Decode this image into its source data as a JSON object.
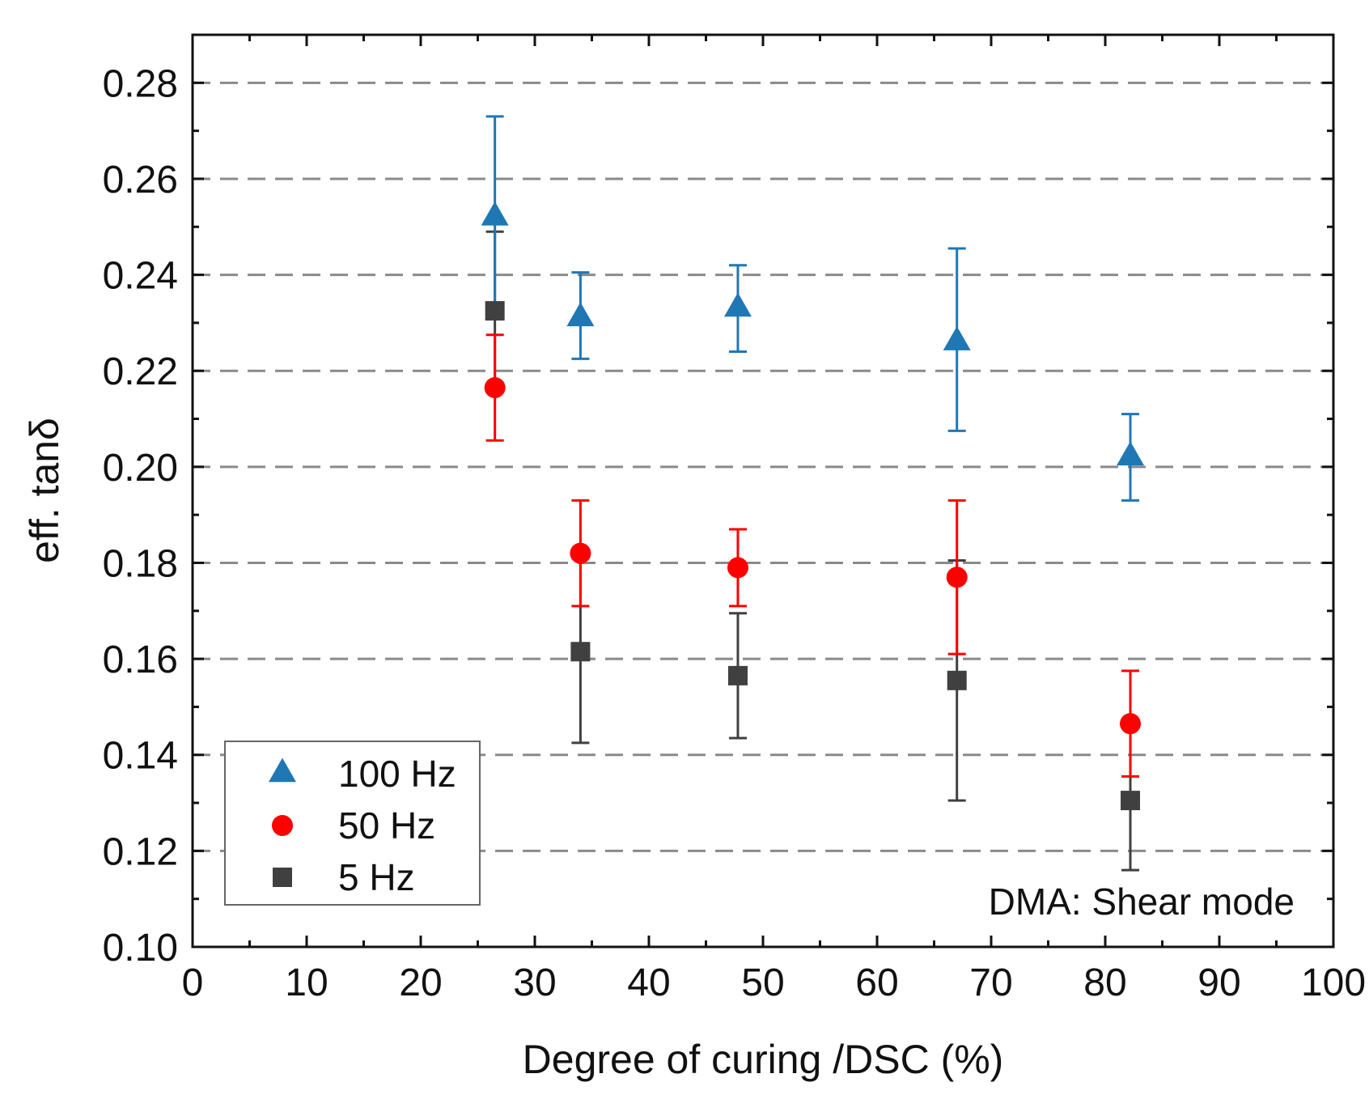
{
  "chart_data": {
    "type": "scatter",
    "xlabel": "Degree of curing /DSC (%)",
    "ylabel_prefix": "eff. tan",
    "ylabel_symbol": "δ",
    "xlim": [
      0,
      100
    ],
    "ylim": [
      0.1,
      0.29
    ],
    "x_ticks": [
      0,
      10,
      20,
      30,
      40,
      50,
      60,
      70,
      80,
      90,
      100
    ],
    "x_tick_labels": [
      "0",
      "10",
      "20",
      "30",
      "40",
      "50",
      "60",
      "70",
      "80",
      "90",
      "100"
    ],
    "y_ticks": [
      0.1,
      0.12,
      0.14,
      0.16,
      0.18,
      0.2,
      0.22,
      0.24,
      0.26,
      0.28
    ],
    "y_tick_labels": [
      "0.10",
      "0.12",
      "0.14",
      "0.16",
      "0.18",
      "0.20",
      "0.22",
      "0.24",
      "0.26",
      "0.28"
    ],
    "grid": "horizontal dashed",
    "annotation": "DMA: Shear mode",
    "legend_position": "bottom-left",
    "series": [
      {
        "name": "100 Hz",
        "marker": "triangle",
        "color": "#1f77b4",
        "points": [
          {
            "x": 26.5,
            "y": 0.252,
            "lo": 0.232,
            "hi": 0.273
          },
          {
            "x": 34.0,
            "y": 0.231,
            "lo": 0.2225,
            "hi": 0.2405
          },
          {
            "x": 47.8,
            "y": 0.233,
            "lo": 0.224,
            "hi": 0.242
          },
          {
            "x": 67.0,
            "y": 0.226,
            "lo": 0.2075,
            "hi": 0.2455
          },
          {
            "x": 82.2,
            "y": 0.202,
            "lo": 0.193,
            "hi": 0.211
          }
        ]
      },
      {
        "name": "50 Hz",
        "marker": "circle",
        "color": "#ff0000",
        "points": [
          {
            "x": 26.5,
            "y": 0.2165,
            "lo": 0.2055,
            "hi": 0.2275
          },
          {
            "x": 34.0,
            "y": 0.182,
            "lo": 0.171,
            "hi": 0.193
          },
          {
            "x": 47.8,
            "y": 0.179,
            "lo": 0.171,
            "hi": 0.187
          },
          {
            "x": 67.0,
            "y": 0.177,
            "lo": 0.161,
            "hi": 0.193
          },
          {
            "x": 82.2,
            "y": 0.1465,
            "lo": 0.1355,
            "hi": 0.1575
          }
        ]
      },
      {
        "name": "5 Hz",
        "marker": "square",
        "color": "#404040",
        "points": [
          {
            "x": 26.5,
            "y": 0.2325,
            "lo": 0.2165,
            "hi": 0.249
          },
          {
            "x": 34.0,
            "y": 0.1615,
            "lo": 0.1425,
            "hi": 0.181
          },
          {
            "x": 47.8,
            "y": 0.1565,
            "lo": 0.1435,
            "hi": 0.1695
          },
          {
            "x": 67.0,
            "y": 0.1555,
            "lo": 0.1305,
            "hi": 0.1805
          },
          {
            "x": 82.2,
            "y": 0.1305,
            "lo": 0.116,
            "hi": 0.146
          }
        ]
      }
    ]
  }
}
